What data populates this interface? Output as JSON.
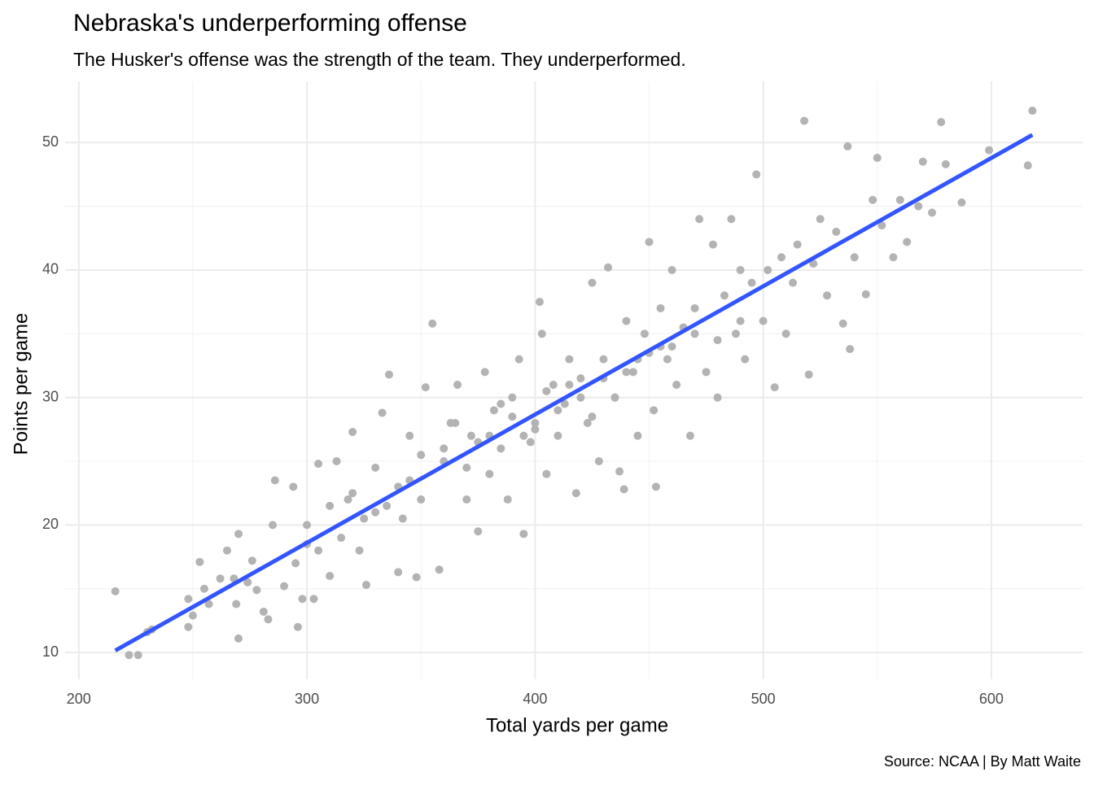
{
  "chart_data": {
    "type": "scatter",
    "title": "Nebraska's underperforming offense",
    "subtitle": "The Husker's offense was the strength of the team. They underperformed.",
    "x_label": "Total yards per game",
    "y_label": "Points per game",
    "caption": "Source: NCAA | By Matt Waite",
    "color": "#b3b3b3",
    "xlim": [
      194,
      640
    ],
    "ylim": [
      7.9,
      54.8
    ],
    "xticks": [
      200,
      300,
      400,
      500,
      600
    ],
    "yticks": [
      10,
      20,
      30,
      40,
      50
    ],
    "x_minor_ticks": [
      250,
      350,
      450,
      550
    ],
    "y_minor_ticks": [
      15,
      25,
      35,
      45
    ],
    "grid": true,
    "x": [
      216,
      222,
      226,
      230,
      232,
      248,
      248,
      250,
      253,
      255,
      257,
      262,
      265,
      268,
      270,
      270,
      269,
      274,
      276,
      278,
      281,
      283,
      285,
      286,
      290,
      294,
      296,
      298,
      300,
      303,
      305,
      310,
      313,
      318,
      320,
      323,
      326,
      330,
      333,
      336,
      340,
      342,
      345,
      348,
      350,
      352,
      355,
      358,
      360,
      363,
      366,
      370,
      372,
      375,
      378,
      380,
      382,
      385,
      388,
      390,
      393,
      395,
      398,
      400,
      402,
      403,
      405,
      408,
      410,
      413,
      415,
      418,
      420,
      423,
      425,
      428,
      430,
      432,
      435,
      437,
      439,
      440,
      443,
      445,
      448,
      450,
      452,
      453,
      455,
      458,
      460,
      462,
      465,
      468,
      470,
      472,
      475,
      478,
      480,
      483,
      486,
      488,
      490,
      492,
      495,
      497,
      500,
      502,
      505,
      508,
      510,
      513,
      515,
      518,
      520,
      522,
      525,
      528,
      532,
      535,
      537,
      538,
      540,
      545,
      548,
      550,
      552,
      557,
      560,
      563,
      568,
      570,
      574,
      578,
      580,
      587,
      599,
      616,
      618,
      300,
      310,
      320,
      330,
      340,
      350,
      360,
      370,
      380,
      390,
      400,
      410,
      420,
      430,
      440,
      450,
      460,
      470,
      480,
      490,
      365,
      375,
      385,
      395,
      405,
      415,
      425,
      435,
      445,
      455,
      345,
      335,
      325,
      315,
      305,
      295
    ],
    "y": [
      14.8,
      9.8,
      9.8,
      11.6,
      11.8,
      14.2,
      12,
      12.9,
      17.1,
      15,
      13.8,
      15.8,
      18,
      15.8,
      19.3,
      11.1,
      13.8,
      15.5,
      17.2,
      14.9,
      13.2,
      12.6,
      20,
      23.5,
      15.2,
      23,
      12,
      14.2,
      18.5,
      14.2,
      24.8,
      16,
      25,
      22,
      27.3,
      18,
      15.3,
      24.5,
      28.8,
      31.8,
      16.3,
      20.5,
      27,
      15.9,
      22,
      30.8,
      35.8,
      16.5,
      25,
      28,
      31,
      22,
      27,
      19.5,
      32,
      24,
      29,
      26,
      22,
      30,
      33,
      19.3,
      26.5,
      28,
      37.5,
      35,
      24,
      31,
      27,
      29.5,
      33,
      22.5,
      31.5,
      28,
      39,
      25,
      33,
      40.2,
      30,
      24.2,
      22.8,
      36,
      32,
      27,
      35,
      42.2,
      29,
      23,
      37,
      33,
      40,
      31,
      35.5,
      27,
      37,
      44,
      32,
      42,
      30,
      38,
      44,
      35,
      40,
      33,
      39,
      47.5,
      36,
      40,
      30.8,
      41,
      35,
      39,
      42,
      51.7,
      31.8,
      40.5,
      44,
      38,
      43,
      35.8,
      49.7,
      33.8,
      41,
      38.1,
      45.5,
      48.8,
      43.5,
      41,
      45.5,
      42.2,
      45,
      48.5,
      44.5,
      51.6,
      48.3,
      45.3,
      49.4,
      48.2,
      52.5,
      20,
      21.5,
      22.5,
      21,
      23,
      25.5,
      26,
      24.5,
      27,
      28.5,
      27.5,
      29,
      30,
      31.5,
      32,
      33.5,
      34,
      35,
      34.5,
      36,
      28,
      26.5,
      29.5,
      27,
      30.5,
      31,
      28.5,
      30,
      33,
      34,
      23.5,
      21.5,
      20.5,
      19,
      18,
      17
    ],
    "trend": {
      "color": "#3355ff",
      "x": [
        216,
        618
      ],
      "y": [
        10.15,
        50.6
      ]
    }
  }
}
